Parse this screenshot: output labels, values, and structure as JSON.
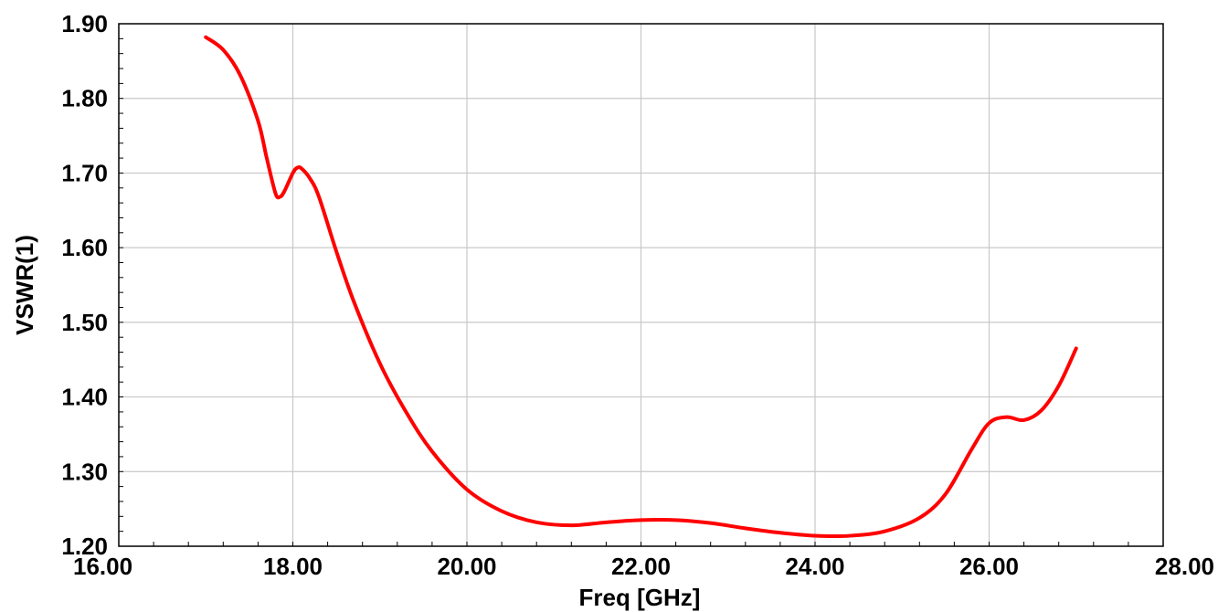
{
  "chart_data": {
    "type": "line",
    "xlabel": "Freq [GHz]",
    "ylabel": "VSWR(1)",
    "xlim": [
      16,
      28
    ],
    "ylim": [
      1.2,
      1.9
    ],
    "x_ticks": [
      "16.00",
      "18.00",
      "20.00",
      "22.00",
      "24.00",
      "26.00",
      "28.00"
    ],
    "y_ticks": [
      "1.20",
      "1.30",
      "1.40",
      "1.50",
      "1.60",
      "1.70",
      "1.80",
      "1.90"
    ],
    "grid": true,
    "series": [
      {
        "color": "#ff0000",
        "x": [
          17.0,
          17.2,
          17.4,
          17.6,
          17.7,
          17.8,
          17.85,
          17.9,
          18.0,
          18.05,
          18.1,
          18.2,
          18.3,
          18.5,
          18.7,
          19.0,
          19.3,
          19.6,
          20.0,
          20.4,
          20.8,
          21.2,
          21.6,
          22.0,
          22.4,
          22.8,
          23.2,
          23.6,
          24.0,
          24.4,
          24.8,
          25.2,
          25.5,
          25.8,
          26.0,
          26.2,
          26.4,
          26.6,
          26.8,
          27.0
        ],
        "y": [
          1.882,
          1.865,
          1.83,
          1.77,
          1.72,
          1.673,
          1.668,
          1.675,
          1.7,
          1.707,
          1.706,
          1.692,
          1.668,
          1.595,
          1.528,
          1.445,
          1.38,
          1.327,
          1.276,
          1.247,
          1.232,
          1.228,
          1.232,
          1.235,
          1.235,
          1.231,
          1.224,
          1.218,
          1.214,
          1.214,
          1.22,
          1.238,
          1.27,
          1.33,
          1.365,
          1.373,
          1.369,
          1.382,
          1.415,
          1.465
        ]
      }
    ]
  }
}
